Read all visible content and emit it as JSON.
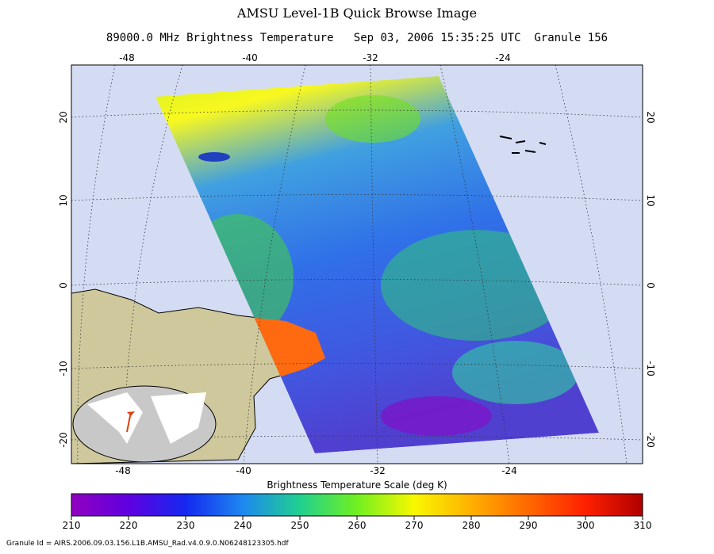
{
  "title": "AMSU Level-1B Quick Browse Image",
  "subtitle": "89000.0 MHz Brightness Temperature   Sep 03, 2006 15:35:25 UTC  Granule 156",
  "map": {
    "lon_labels_top": [
      -48,
      -40,
      -32,
      -24
    ],
    "lon_labels_bottom": [
      -48,
      -40,
      -32,
      -24
    ],
    "lat_labels_left": [
      20,
      10,
      0,
      -10,
      -20
    ],
    "lat_labels_right": [
      20,
      10,
      0,
      -10,
      -20
    ]
  },
  "colorbar": {
    "label": "Brightness Temperature Scale (deg K)",
    "ticks": [
      210,
      220,
      230,
      240,
      250,
      260,
      270,
      280,
      290,
      300,
      310
    ]
  },
  "footer": "Granule Id = AIRS.2006.09.03.156.L1B.AMSU_Rad.v4.0.9.0.N06248123305.hdf"
}
